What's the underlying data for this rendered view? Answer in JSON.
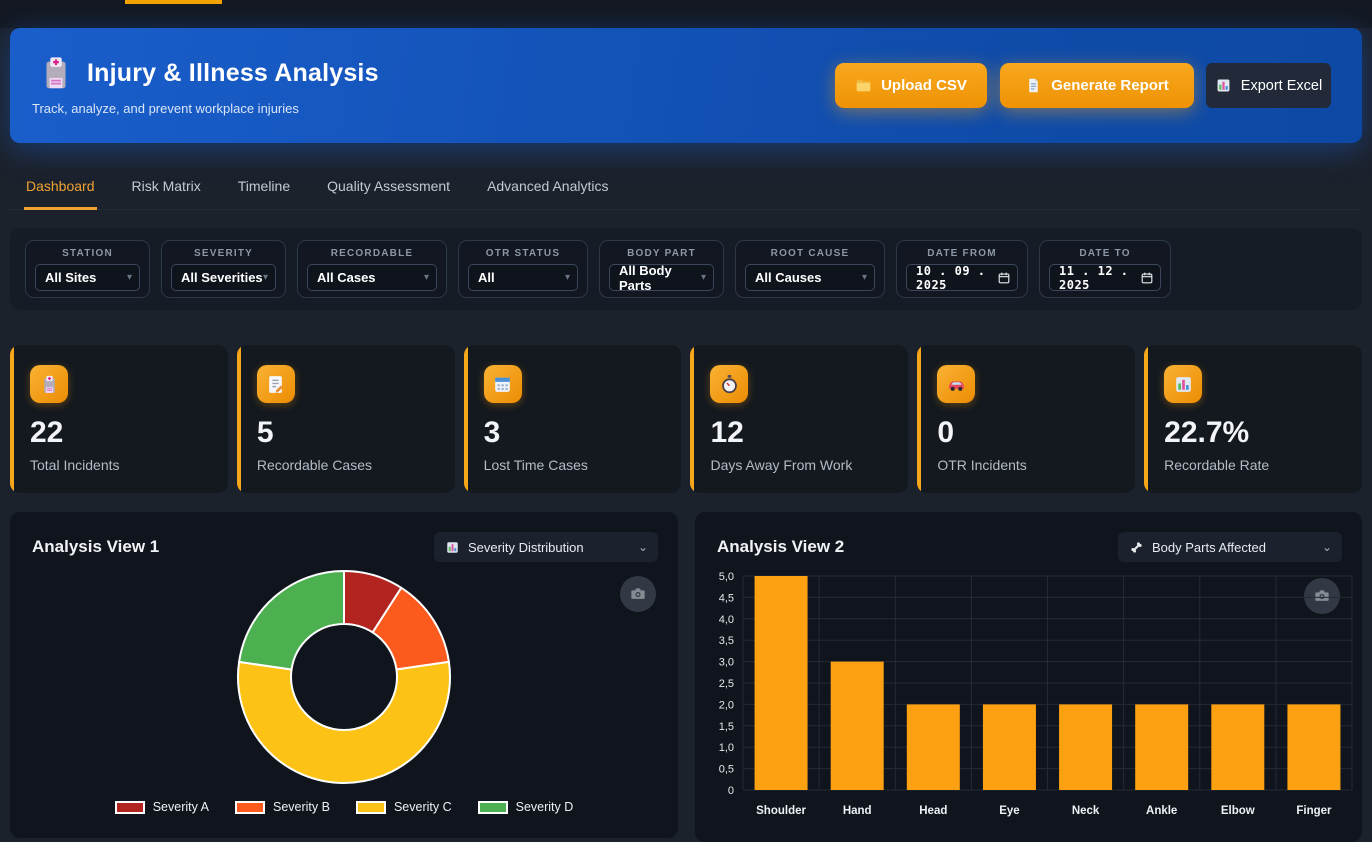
{
  "page": {
    "top_accent_color": "#f5a300"
  },
  "header": {
    "icon": "hospital-icon",
    "title": "Injury & Illness Analysis",
    "subtitle": "Track, analyze, and prevent workplace injuries",
    "buttons": [
      {
        "label": "Upload CSV",
        "icon": "folder-icon",
        "style": "orange"
      },
      {
        "label": "Generate Report",
        "icon": "doc-icon",
        "style": "orange"
      },
      {
        "label": "Export Excel",
        "icon": "chart-icon",
        "style": "dark"
      }
    ]
  },
  "tabs": {
    "items": [
      {
        "label": "Dashboard",
        "active": true
      },
      {
        "label": "Risk Matrix",
        "active": false
      },
      {
        "label": "Timeline",
        "active": false
      },
      {
        "label": "Quality Assessment",
        "active": false
      },
      {
        "label": "Advanced Analytics",
        "active": false
      }
    ]
  },
  "ui": {
    "chevron_small": "▾",
    "chevron_select": "⌄"
  },
  "filters": {
    "items": [
      {
        "label": "STATION",
        "value": "All Sites",
        "type": "select"
      },
      {
        "label": "SEVERITY",
        "value": "All Severities",
        "type": "select"
      },
      {
        "label": "RECORDABLE",
        "value": "All Cases",
        "type": "select"
      },
      {
        "label": "OTR STATUS",
        "value": "All",
        "type": "select"
      },
      {
        "label": "BODY PART",
        "value": "All Body Parts",
        "type": "select"
      },
      {
        "label": "ROOT CAUSE",
        "value": "All Causes",
        "type": "select"
      },
      {
        "label": "DATE FROM",
        "value": "10 . 09 . 2025",
        "type": "date",
        "icon": "calendar-outline-icon"
      },
      {
        "label": "DATE TO",
        "value": "11 . 12 . 2025",
        "type": "date",
        "icon": "calendar-outline-icon"
      }
    ]
  },
  "kpis": {
    "accent_color": "#f6a719",
    "items": [
      {
        "icon": "hospital-icon",
        "value": "22",
        "label": "Total Incidents"
      },
      {
        "icon": "memo-icon",
        "value": "5",
        "label": "Recordable Cases"
      },
      {
        "icon": "calendar-icon",
        "value": "3",
        "label": "Lost Time Cases"
      },
      {
        "icon": "stopwatch-icon",
        "value": "12",
        "label": "Days Away From Work"
      },
      {
        "icon": "car-icon",
        "value": "0",
        "label": "OTR Incidents"
      },
      {
        "icon": "chart-icon",
        "value": "22.7%",
        "label": "Recordable Rate"
      }
    ]
  },
  "views": [
    {
      "title": "Analysis View 1",
      "selector_icon": "chart-icon",
      "selector_label": "Severity Distribution",
      "camera_icon": "camera-icon"
    },
    {
      "title": "Analysis View 2",
      "selector_icon": "bone-icon",
      "selector_label": "Body Parts Affected",
      "camera_icon": "camera-icon"
    }
  ],
  "chart_data": [
    {
      "type": "pie",
      "title": "Severity Distribution",
      "labels": [
        "Severity A",
        "Severity B",
        "Severity C",
        "Severity D"
      ],
      "values": [
        2,
        3,
        12,
        5
      ],
      "colors": [
        "#b22420",
        "#fd5a1e",
        "#fcc216",
        "#4caf50"
      ],
      "hole": 0.5,
      "slice_border_color": "#ffffff",
      "legend_position": "bottom",
      "start_angle_deg": 0,
      "direction": "clockwise"
    },
    {
      "type": "bar",
      "title": "Body Parts Affected",
      "categories": [
        "Shoulder",
        "Hand",
        "Head",
        "Eye",
        "Neck",
        "Ankle",
        "Elbow",
        "Finger"
      ],
      "values": [
        5,
        3,
        2,
        2,
        2,
        2,
        2,
        2
      ],
      "bar_color": "#fda011",
      "ylim": [
        0,
        5
      ],
      "ytick_step": 0.5,
      "ytick_labels": [
        "0",
        "0,5",
        "1,0",
        "1,5",
        "2,0",
        "2,5",
        "3,0",
        "3,5",
        "4,0",
        "4,5",
        "5,0"
      ],
      "decimal_separator": ",",
      "grid": true,
      "grid_color": "#242a34",
      "legend_position": "none"
    }
  ]
}
